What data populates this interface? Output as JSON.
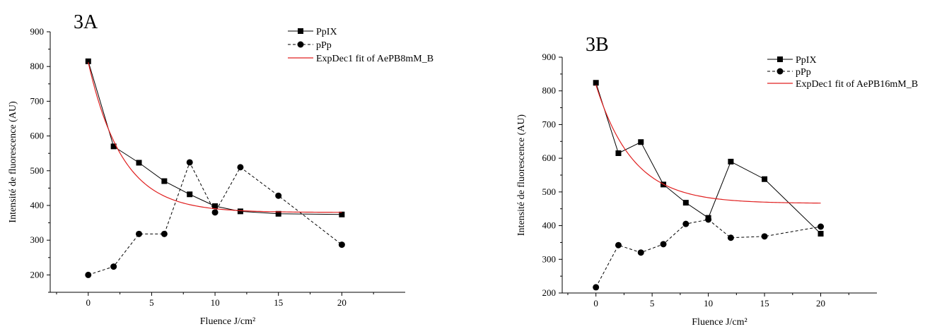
{
  "chart_data": [
    {
      "type": "line",
      "title": "3A",
      "xlabel": "Fluence J/cm²",
      "ylabel": "Intensité de fluorescence (AU)",
      "xlim": [
        -3,
        25
      ],
      "ylim": [
        150,
        900
      ],
      "xticks": [
        0,
        5,
        10,
        15,
        20
      ],
      "yticks": [
        200,
        300,
        400,
        500,
        600,
        700,
        800,
        900
      ],
      "legend_position": "top-right",
      "series": [
        {
          "name": "PpIX",
          "style": "solid",
          "marker": "square",
          "color": "#000000",
          "x": [
            0,
            2,
            4,
            6,
            8,
            10,
            12,
            15,
            20
          ],
          "y": [
            815,
            570,
            523,
            470,
            432,
            398,
            383,
            376,
            374
          ]
        },
        {
          "name": "pPp",
          "style": "dashed",
          "marker": "circle",
          "color": "#000000",
          "x": [
            0,
            2,
            4,
            6,
            8,
            10,
            12,
            15,
            20
          ],
          "y": [
            200,
            224,
            318,
            318,
            524,
            380,
            510,
            428,
            287
          ]
        },
        {
          "name": "ExpDec1 fit of AePB8mM_B",
          "style": "solid",
          "marker": "none",
          "color": "#e02020",
          "fit": {
            "y0": 380,
            "A": 432,
            "t": 2.7,
            "x0": 0,
            "x1": 20
          }
        }
      ]
    },
    {
      "type": "line",
      "title": "3B",
      "xlabel": "Fluence J/cm²",
      "ylabel": "Intensité de fluorescence (AU)",
      "xlim": [
        -3,
        25
      ],
      "ylim": [
        200,
        900
      ],
      "xticks": [
        0,
        5,
        10,
        15,
        20
      ],
      "yticks": [
        200,
        300,
        400,
        500,
        600,
        700,
        800,
        900
      ],
      "legend_position": "top-right",
      "series": [
        {
          "name": "PpIX",
          "style": "solid",
          "marker": "square",
          "color": "#000000",
          "x": [
            0,
            2,
            4,
            6,
            8,
            10,
            12,
            15,
            20
          ],
          "y": [
            824,
            615,
            648,
            522,
            468,
            423,
            590,
            538,
            376
          ]
        },
        {
          "name": "pPp",
          "style": "dashed",
          "marker": "circle",
          "color": "#000000",
          "x": [
            0,
            2,
            4,
            6,
            8,
            10,
            12,
            15,
            20
          ],
          "y": [
            217,
            342,
            320,
            345,
            405,
            418,
            364,
            368,
            397
          ]
        },
        {
          "name": "ExpDec1 fit of AePB16mM_B",
          "style": "solid",
          "marker": "none",
          "color": "#e02020",
          "fit": {
            "y0": 466,
            "A": 352,
            "t": 3.3,
            "x0": 0,
            "x1": 20
          }
        }
      ]
    }
  ]
}
